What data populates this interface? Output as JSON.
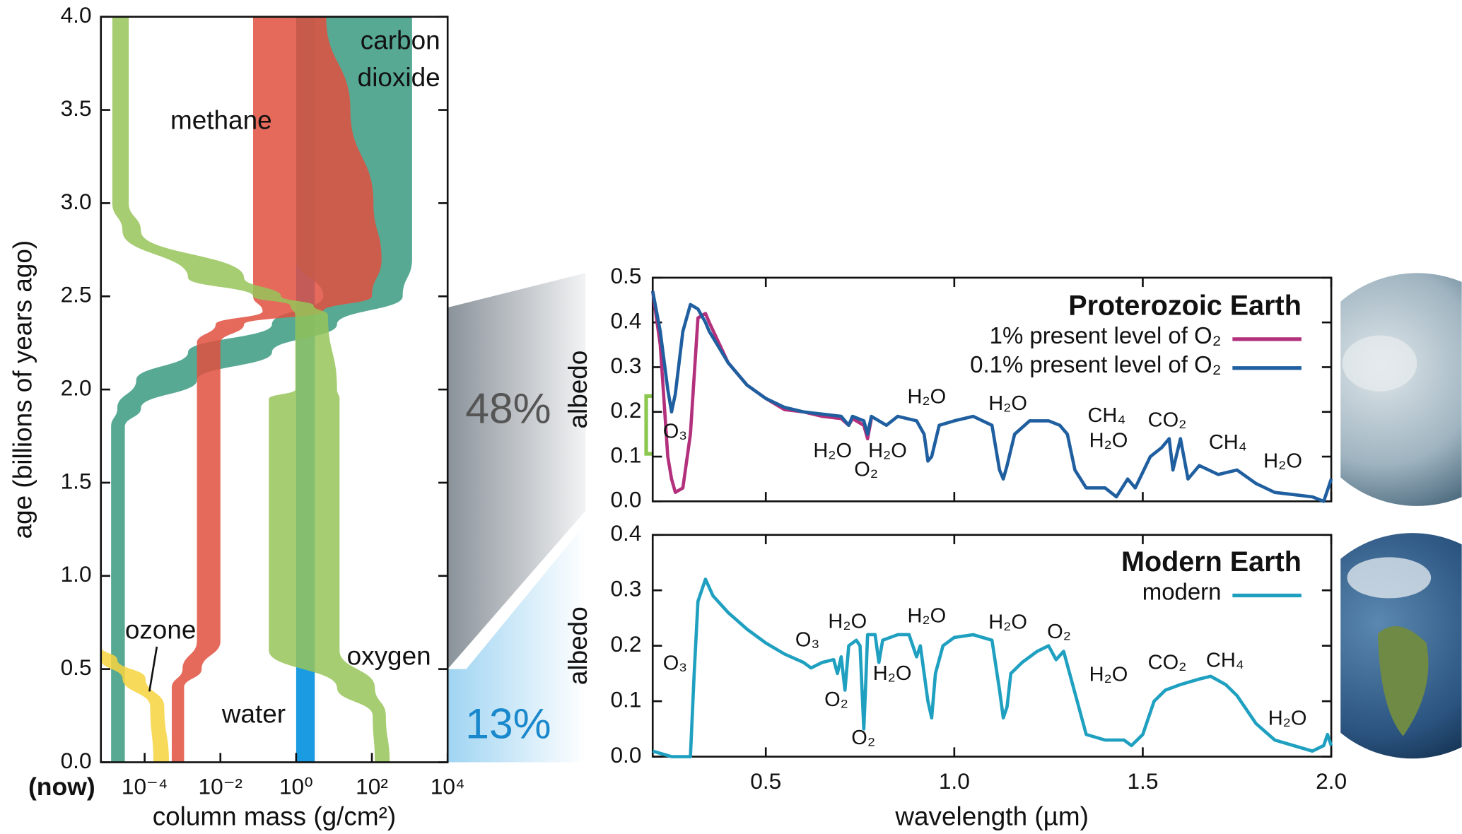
{
  "chart_data": [
    {
      "type": "band",
      "ylabel": "age (billions of years ago)",
      "xlabel": "column mass (g/cm²)",
      "x_note": "(now)",
      "log_x": true,
      "xlim": [
        7e-06,
        10000
      ],
      "ylim": [
        0,
        4
      ],
      "xticks": [
        {
          "value": 0.0001,
          "label": "10⁻⁴"
        },
        {
          "value": 0.01,
          "label": "10⁻²"
        },
        {
          "value": 1,
          "label": "10⁰"
        },
        {
          "value": 100,
          "label": "10²"
        },
        {
          "value": 10000,
          "label": "10⁴"
        }
      ],
      "yticks": [
        {
          "value": 0,
          "label": "0.0"
        },
        0.5,
        {
          "value": 1,
          "label": "1.0"
        },
        1.5,
        {
          "value": 2,
          "label": "2.0"
        },
        2.5,
        {
          "value": 3,
          "label": "3.0"
        },
        3.5,
        {
          "value": 4,
          "label": "4.0"
        }
      ],
      "series": [
        {
          "name": "water",
          "color": "#1b9ce2",
          "age": [
            4.0,
            0.0
          ],
          "low": [
            1,
            1
          ],
          "high": [
            3.1,
            3.1
          ]
        },
        {
          "name": "carbon dioxide",
          "color": "#3a9a80",
          "age": [
            4.0,
            2.7,
            2.5,
            2.35,
            2.2,
            2.05,
            1.9,
            1.8,
            0.0
          ],
          "low": [
            1,
            1,
            5.2,
            0.23,
            0.0014,
            6e-05,
            1.9e-05,
            1.3e-05,
            1.3e-05
          ],
          "high": [
            1150,
            1150,
            650,
            12,
            0.23,
            0.0024,
            8e-05,
            3e-05,
            3e-05
          ]
        },
        {
          "name": "methane",
          "color": "#e0503f",
          "age": [
            4.0,
            3.5,
            3.0,
            2.7,
            2.5,
            2.42,
            2.35,
            2.25,
            0.65,
            0.5,
            0.4,
            0.0
          ],
          "low": [
            0.073,
            0.073,
            0.073,
            0.073,
            0.073,
            0.13,
            0.0075,
            0.0024,
            0.0024,
            0.001,
            0.00052,
            0.00052
          ],
          "high": [
            6.2,
            27,
            110,
            180,
            100,
            5.2,
            0.042,
            0.01,
            0.01,
            0.0032,
            0.0011,
            0.0011
          ]
        },
        {
          "name": "oxygen",
          "color": "#97c459",
          "age": [
            4.0,
            3.0,
            2.85,
            2.6,
            2.5,
            2.45,
            2.4,
            2.0,
            1.95,
            0.6,
            0.4,
            0.25,
            0.0
          ],
          "low": [
            1.4e-05,
            1.4e-05,
            2.6e-05,
            0.0014,
            0.073,
            0.71,
            0.95,
            0.95,
            0.19,
            0.19,
            12,
            105,
            120
          ],
          "high": [
            3.8e-05,
            3.8e-05,
            8e-05,
            0.042,
            0.4,
            2.9,
            6.9,
            12,
            14,
            14,
            120,
            234,
            295
          ]
        },
        {
          "name": "ozone",
          "color": "#f7d33e",
          "age": [
            0.62,
            0.55,
            0.45,
            0.3,
            0.0
          ],
          "low": [
            7e-06,
            7e-06,
            2.6e-05,
            0.00014,
            0.00017
          ],
          "high": [
            7e-06,
            1.9e-05,
            0.000105,
            0.00033,
            0.00044
          ]
        }
      ]
    },
    {
      "type": "line",
      "title": "Proterozoic Earth",
      "ylabel": "albedo",
      "legend": "upper right",
      "xlim": [
        0.2,
        2.0
      ],
      "ylim": [
        0,
        0.5
      ],
      "xticks": [
        0.5,
        1,
        1.5,
        2
      ],
      "yticks": [
        {
          "value": 0,
          "label": "0.0"
        },
        0.1,
        0.2,
        0.3,
        0.4,
        0.5
      ],
      "x": [
        0.2,
        0.22,
        0.24,
        0.25,
        0.26,
        0.28,
        0.3,
        0.32,
        0.34,
        0.35,
        0.4,
        0.45,
        0.5,
        0.55,
        0.6,
        0.65,
        0.7,
        0.72,
        0.73,
        0.76,
        0.77,
        0.78,
        0.82,
        0.85,
        0.9,
        0.92,
        0.93,
        0.94,
        0.96,
        1.0,
        1.05,
        1.1,
        1.12,
        1.13,
        1.14,
        1.16,
        1.2,
        1.25,
        1.28,
        1.3,
        1.32,
        1.35,
        1.4,
        1.43,
        1.46,
        1.48,
        1.52,
        1.55,
        1.57,
        1.58,
        1.6,
        1.62,
        1.65,
        1.7,
        1.75,
        1.8,
        1.85,
        1.9,
        1.95,
        1.98,
        2.0
      ],
      "series": [
        {
          "name": "1% present level of O₂",
          "color": "#b2307c",
          "values": [
            0.47,
            0.35,
            0.1,
            0.05,
            0.02,
            0.03,
            0.15,
            0.41,
            0.42,
            0.4,
            0.31,
            0.26,
            0.23,
            0.205,
            0.2,
            0.19,
            0.185,
            0.17,
            0.185,
            0.17,
            0.14,
            0.185,
            null,
            null,
            null,
            null,
            null,
            null,
            null,
            null,
            null,
            null,
            null,
            null,
            null,
            null,
            null,
            null,
            null,
            null,
            null,
            null,
            null,
            null,
            null,
            null,
            null,
            null,
            null,
            null,
            null,
            null,
            null,
            null,
            null,
            null,
            null,
            null,
            null,
            null,
            null
          ]
        },
        {
          "name": "0.1% present level of O₂",
          "color": "#1f5fa0",
          "values": [
            0.47,
            0.38,
            0.25,
            0.2,
            0.24,
            0.38,
            0.44,
            0.43,
            0.4,
            0.38,
            0.31,
            0.26,
            0.23,
            0.21,
            0.2,
            0.195,
            0.19,
            0.17,
            0.19,
            0.18,
            0.15,
            0.19,
            0.17,
            0.19,
            0.18,
            0.15,
            0.09,
            0.1,
            0.17,
            0.18,
            0.19,
            0.17,
            0.07,
            0.05,
            0.08,
            0.15,
            0.18,
            0.18,
            0.17,
            0.15,
            0.07,
            0.03,
            0.03,
            0.01,
            0.05,
            0.03,
            0.1,
            0.12,
            0.14,
            0.07,
            0.14,
            0.05,
            0.08,
            0.06,
            0.07,
            0.04,
            0.02,
            0.015,
            0.01,
            0.0,
            0.05
          ]
        }
      ],
      "annotations": [
        "O₃",
        "H₂O",
        "O₂",
        "H₂O",
        "H₂O",
        "H₂O",
        "CH₄",
        "H₂O",
        "CO₂",
        "CH₄",
        "H₂O"
      ]
    },
    {
      "type": "line",
      "title": "Modern Earth",
      "ylabel": "albedo",
      "xlabel": "wavelength (µm)",
      "legend": "upper right",
      "xlim": [
        0.2,
        2.0
      ],
      "ylim": [
        0,
        0.4
      ],
      "xticks": [
        0.5,
        {
          "value": 1,
          "label": "1.0"
        },
        1.5,
        {
          "value": 2,
          "label": "2.0"
        }
      ],
      "yticks": [
        {
          "value": 0,
          "label": "0.0"
        },
        0.1,
        0.2,
        0.3,
        0.4
      ],
      "x": [
        0.2,
        0.25,
        0.3,
        0.31,
        0.32,
        0.34,
        0.36,
        0.4,
        0.45,
        0.5,
        0.55,
        0.6,
        0.62,
        0.65,
        0.68,
        0.69,
        0.7,
        0.71,
        0.72,
        0.74,
        0.75,
        0.76,
        0.765,
        0.77,
        0.79,
        0.8,
        0.81,
        0.85,
        0.88,
        0.9,
        0.91,
        0.93,
        0.94,
        0.95,
        0.97,
        1.0,
        1.05,
        1.1,
        1.12,
        1.13,
        1.14,
        1.15,
        1.18,
        1.22,
        1.25,
        1.27,
        1.29,
        1.31,
        1.35,
        1.4,
        1.45,
        1.47,
        1.5,
        1.53,
        1.56,
        1.6,
        1.65,
        1.68,
        1.72,
        1.75,
        1.8,
        1.85,
        1.9,
        1.95,
        1.98,
        1.99,
        2.0
      ],
      "series": [
        {
          "name": "modern",
          "color": "#1fa0c0",
          "values": [
            0.01,
            0.0,
            0.0,
            0.15,
            0.28,
            0.32,
            0.29,
            0.26,
            0.23,
            0.205,
            0.185,
            0.17,
            0.16,
            0.17,
            0.175,
            0.15,
            0.18,
            0.12,
            0.2,
            0.21,
            0.2,
            0.05,
            0.13,
            0.22,
            0.22,
            0.17,
            0.21,
            0.22,
            0.22,
            0.18,
            0.2,
            0.1,
            0.07,
            0.15,
            0.2,
            0.215,
            0.22,
            0.21,
            0.12,
            0.07,
            0.09,
            0.15,
            0.17,
            0.19,
            0.2,
            0.175,
            0.19,
            0.14,
            0.04,
            0.03,
            0.03,
            0.02,
            0.04,
            0.1,
            0.12,
            0.13,
            0.14,
            0.145,
            0.13,
            0.11,
            0.06,
            0.03,
            0.02,
            0.01,
            0.02,
            0.04,
            0.02
          ]
        }
      ],
      "annotations": [
        "O₃",
        "O₃",
        "H₂O",
        "H₂O",
        "H₂O",
        "O₂",
        "O₂",
        "H₂O",
        "O₂",
        "H₂O",
        "CO₂",
        "CH₄",
        "H₂O"
      ]
    }
  ],
  "callouts": [
    "48%",
    "13%"
  ]
}
